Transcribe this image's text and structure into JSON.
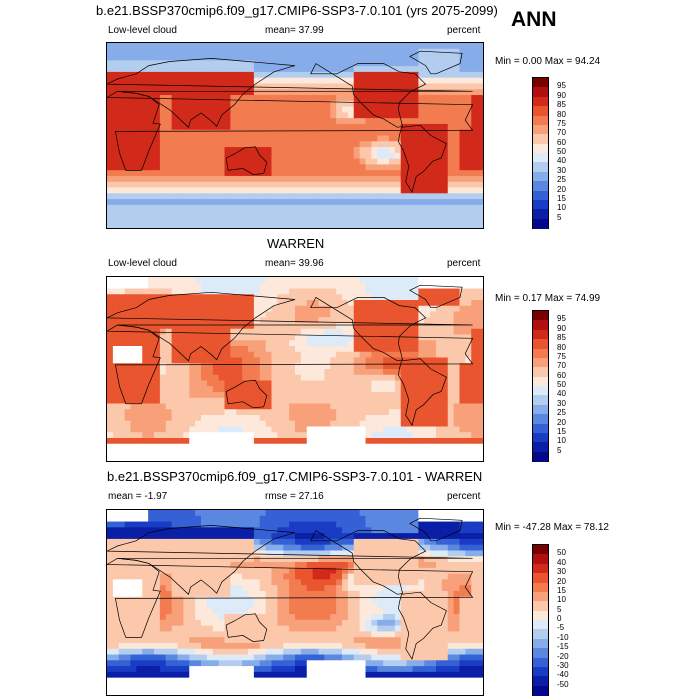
{
  "header": {
    "ann_label": "ANN"
  },
  "panels": [
    {
      "title": "b.e21.BSSP370cmip6.f09_g17.CMIP6-SSP3-7.0.101 (yrs 2075-2099)",
      "left_label": "Low-level cloud",
      "center_label": "mean=  37.99",
      "right_label": "percent",
      "range_label": "Min =   0.00 Max =  94.24",
      "colorbar_levels": [
        "95",
        "90",
        "85",
        "80",
        "75",
        "70",
        "60",
        "50",
        "40",
        "30",
        "25",
        "20",
        "15",
        "10",
        "5"
      ],
      "colorbar_colors": [
        "#7a0000",
        "#b01010",
        "#d22a1a",
        "#e8552e",
        "#f27c50",
        "#f8a07a",
        "#fbc8ac",
        "#fde8dc",
        "#ddeaf8",
        "#b3cdef",
        "#86acea",
        "#5a88e0",
        "#3462d6",
        "#1a3cc4",
        "#0a1ea6",
        "#04088a"
      ],
      "field_type": "model"
    },
    {
      "title": "WARREN",
      "left_label": "Low-level cloud",
      "center_label": "mean=  39.96",
      "right_label": "percent",
      "range_label": "Min =   0.17 Max =  74.99",
      "colorbar_levels": [
        "95",
        "90",
        "85",
        "80",
        "75",
        "70",
        "60",
        "50",
        "40",
        "30",
        "25",
        "20",
        "15",
        "10",
        "5"
      ],
      "colorbar_colors": [
        "#7a0000",
        "#b01010",
        "#d22a1a",
        "#e8552e",
        "#f27c50",
        "#f8a07a",
        "#fbc8ac",
        "#fde8dc",
        "#ddeaf8",
        "#b3cdef",
        "#86acea",
        "#5a88e0",
        "#3462d6",
        "#1a3cc4",
        "#0a1ea6",
        "#04088a"
      ],
      "field_type": "obs"
    },
    {
      "title": "b.e21.BSSP370cmip6.f09_g17.CMIP6-SSP3-7.0.101 - WARREN",
      "left_label": "mean =  -1.97",
      "center_label": "rmse =  27.16",
      "right_label": "percent",
      "range_label": "Min = -47.28 Max =  78.12",
      "colorbar_levels": [
        "50",
        "40",
        "30",
        "20",
        "15",
        "10",
        "5",
        "0",
        "-5",
        "-10",
        "-15",
        "-20",
        "-30",
        "-40",
        "-50"
      ],
      "colorbar_colors": [
        "#7a0000",
        "#b01010",
        "#d22a1a",
        "#e8552e",
        "#f27c50",
        "#f8a07a",
        "#fbc8ac",
        "#fde8dc",
        "#ddeaf8",
        "#b3cdef",
        "#86acea",
        "#5a88e0",
        "#3462d6",
        "#1a3cc4",
        "#0a1ea6",
        "#04088a"
      ],
      "field_type": "diff"
    }
  ],
  "chart_data": [
    {
      "type": "heatmap",
      "title": "b.e21.BSSP370cmip6.f09_g17.CMIP6-SSP3-7.0.101 (yrs 2075-2099)",
      "variable": "Low-level cloud",
      "units": "percent",
      "mean": 37.99,
      "min": 0.0,
      "max": 94.24,
      "levels": [
        5,
        10,
        15,
        20,
        25,
        30,
        40,
        50,
        60,
        70,
        75,
        80,
        85,
        90,
        95
      ]
    },
    {
      "type": "heatmap",
      "title": "WARREN",
      "variable": "Low-level cloud",
      "units": "percent",
      "mean": 39.96,
      "min": 0.17,
      "max": 74.99,
      "levels": [
        5,
        10,
        15,
        20,
        25,
        30,
        40,
        50,
        60,
        70,
        75,
        80,
        85,
        90,
        95
      ]
    },
    {
      "type": "heatmap",
      "title": "b.e21.BSSP370cmip6.f09_g17.CMIP6-SSP3-7.0.101 - WARREN",
      "units": "percent",
      "mean": -1.97,
      "rmse": 27.16,
      "min": -47.28,
      "max": 78.12,
      "levels": [
        -50,
        -40,
        -30,
        -20,
        -15,
        -10,
        -5,
        0,
        5,
        10,
        15,
        20,
        30,
        40,
        50
      ]
    }
  ]
}
